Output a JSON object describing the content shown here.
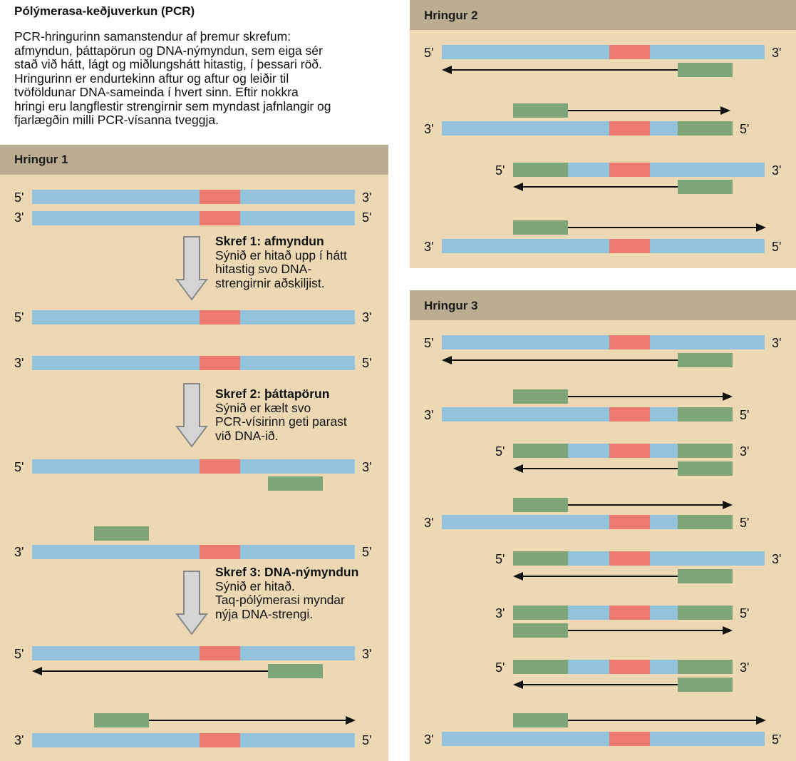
{
  "title": "Pólýmerasa-keðjuverkun (PCR)",
  "intro_lines": [
    "PCR-hringurinn samanstendur af þremur skrefum:",
    "afmyndun, þáttapörun og DNA-nýmyndun, sem eiga sér",
    "stað við hátt, lágt og miðlungshátt hitastig, í þessari röð.",
    "Hringurinn er endurtekinn aftur og aftur og leiðir til",
    "tvöföldunar DNA-sameinda í hvert sinn. Eftir nokkra",
    "hringi eru langflestir strengirnir sem myndast jafnlangir og",
    "fjarlægðin milli PCR-vísanna tveggja."
  ],
  "labels": {
    "five": "5'",
    "three": "3'"
  },
  "colors": {
    "dna": "#93c3dc",
    "target": "#ec7a70",
    "primer": "#7da577",
    "panel": "#ecd9b4",
    "panel_header": "#bcad92"
  },
  "cycle1": {
    "header": "Hringur 1",
    "steps": [
      {
        "title": "Skref 1: afmyndun",
        "lines": [
          "Sýnið er hitað upp í hátt",
          "hitastig svo DNA-",
          "strengirnir aðskiljist."
        ]
      },
      {
        "title": "Skref 2: þáttapörun",
        "lines": [
          "Sýnið er kælt svo",
          "PCR-vísirinn geti parast",
          "við DNA-ið."
        ]
      },
      {
        "title": "Skref 3: DNA-nýmyndun",
        "lines": [
          "Sýnið er hitað.",
          "Taq-pólýmerasi myndar",
          "nýja DNA-strengi."
        ]
      }
    ]
  },
  "cycle2": {
    "header": "Hringur 2"
  },
  "cycle3": {
    "header": "Hringur 3"
  }
}
